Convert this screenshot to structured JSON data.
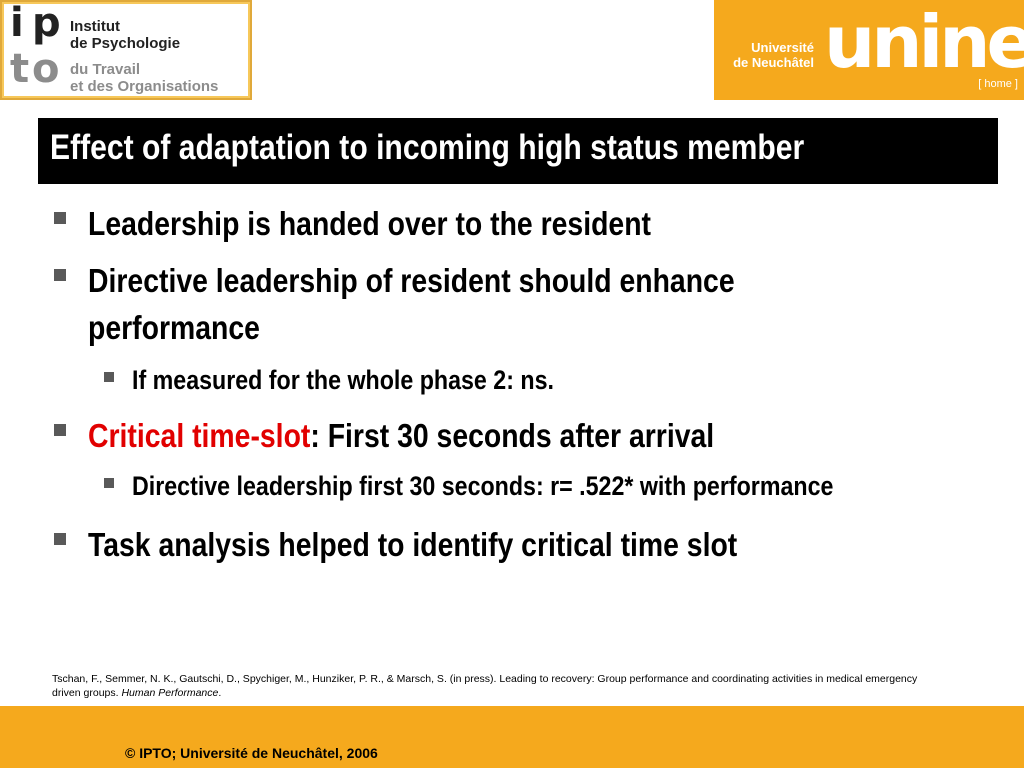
{
  "header": {
    "ipto_logo": {
      "letters": [
        "i",
        "p",
        "t",
        "o"
      ],
      "line1": "Institut",
      "line2": "de Psychologie",
      "line3": "du Travail",
      "line4": "et des Organisations"
    },
    "unine_logo": {
      "line1": "Université",
      "line2": "de Neuchâtel",
      "word": "unine",
      "home": "[ home ]"
    }
  },
  "slide": {
    "title": "Effect of adaptation to incoming high status member",
    "bullets": [
      {
        "text": "Leadership is handed over to the resident"
      },
      {
        "text_line1": "Directive leadership of resident should enhance",
        "text_line2": "performance"
      },
      {
        "text": "If measured for the whole phase 2: ns."
      },
      {
        "highlight": "Critical time-slot",
        "text": ": First 30 seconds after arrival"
      },
      {
        "text": "Directive leadership first 30 seconds: r= .522* with performance"
      },
      {
        "text": "Task analysis helped to identify critical time slot"
      }
    ],
    "citation": {
      "line1": "Tschan, F., Semmer, N. K., Gautschi, D., Spychiger, M., Hunziker, P. R., & Marsch, S. (in press). Leading to recovery: Group performance and coordinating activities in medical emergency",
      "line2_plain": "driven groups. ",
      "line2_italic": "Human Performance",
      "line2_end": "."
    }
  },
  "footer": {
    "text": "© IPTO; Université de Neuchâtel, 2006"
  },
  "colors": {
    "accent_orange": "#f5a91d",
    "title_bg": "#000000",
    "highlight_red": "#e10000"
  }
}
